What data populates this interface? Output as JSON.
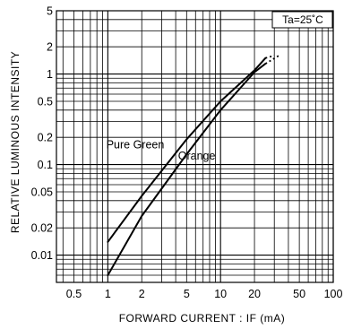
{
  "chart_data": {
    "type": "line",
    "xlabel": "FORWARD  CURRENT : IF (mA)",
    "ylabel": "RELATIVE LUMINOUS INTENSITY",
    "x_scale": "log",
    "y_scale": "log",
    "xlim": [
      0.35,
      100
    ],
    "ylim": [
      0.005,
      5
    ],
    "grid": true,
    "x_ticks": [
      0.5,
      1,
      2,
      5,
      10,
      20,
      50,
      100
    ],
    "x_tick_labels": [
      "0.5",
      "1",
      "2",
      "5",
      "10",
      "20",
      "50",
      "100"
    ],
    "y_ticks": [
      0.01,
      0.02,
      0.05,
      0.1,
      0.2,
      0.5,
      1,
      2,
      5
    ],
    "y_tick_labels": [
      "0.01",
      "0.02",
      "0.05",
      "0.1",
      "0.2",
      "0.5",
      "1",
      "2",
      "5"
    ],
    "annotations": [
      {
        "text": "Ta=25˚C",
        "position": "top-right"
      }
    ],
    "series": [
      {
        "name": "Pure Green",
        "x": [
          1,
          2,
          5,
          10,
          20,
          25
        ],
        "y": [
          0.014,
          0.045,
          0.19,
          0.5,
          1.1,
          1.5
        ],
        "extrapolated": {
          "x": [
            25,
            30
          ],
          "y": [
            1.5,
            1.6
          ]
        }
      },
      {
        "name": "Orange",
        "x": [
          1,
          2,
          5,
          10,
          20,
          25
        ],
        "y": [
          0.006,
          0.027,
          0.13,
          0.4,
          1.05,
          1.3
        ],
        "extrapolated": {
          "x": [
            25,
            33
          ],
          "y": [
            1.3,
            1.6
          ]
        }
      }
    ]
  }
}
